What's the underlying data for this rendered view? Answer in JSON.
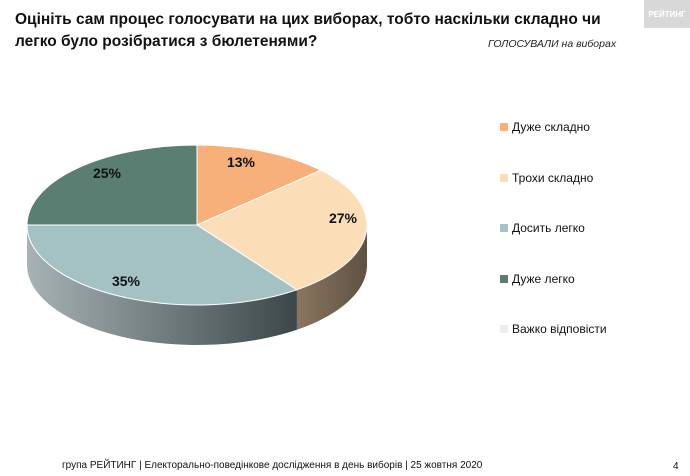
{
  "header": {
    "title": "Оцініть сам процес голосувати на цих виборах, тобто наскільки складно чи легко було розібратися з бюлетенями?",
    "subtitle": "ГОЛОСУВАЛИ на виборах",
    "logo_text": "РЕЙТИНГ"
  },
  "chart_data": {
    "type": "pie",
    "style": "3d",
    "categories": [
      "Дуже складно",
      "Трохи складно",
      "Досить легко",
      "Дуже легко",
      "Важко відповісти"
    ],
    "values": [
      13,
      27,
      35,
      25,
      0
    ],
    "labels": [
      "13%",
      "27%",
      "35%",
      "25%",
      ""
    ],
    "colors": [
      "#F8B07A",
      "#FBDDB8",
      "#A4C1C4",
      "#5B7E73",
      "#EDEDED"
    ],
    "legend_position": "right"
  },
  "footer": {
    "text": "група РЕЙТИНГ | Електорально-поведінкове дослідження в день виборів | 25 жовтня 2020",
    "page": "4"
  }
}
